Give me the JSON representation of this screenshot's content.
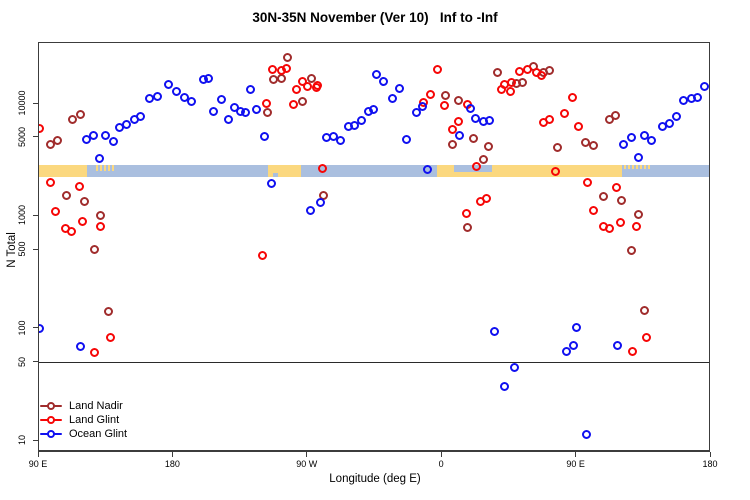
{
  "title": "30N-35N November (Ver 10)   Inf to -Inf",
  "axes": {
    "x_label": "Longitude (deg E)",
    "y_label": "N Total",
    "x_ticks": [
      {
        "label": "90 E",
        "deg": 0
      },
      {
        "label": "180",
        "deg": 90
      },
      {
        "label": "90 W",
        "deg": 180
      },
      {
        "label": "0",
        "deg": 270
      },
      {
        "label": "90 E",
        "deg": 360
      },
      {
        "label": "180",
        "deg": 450
      }
    ],
    "y_ticks": [
      {
        "label": "10",
        "value": 10
      },
      {
        "label": "50",
        "value": 50
      },
      {
        "label": "100",
        "value": 100
      },
      {
        "label": "500",
        "value": 500
      },
      {
        "label": "1000",
        "value": 1000
      },
      {
        "label": "5000",
        "value": 5000
      },
      {
        "label": "10000",
        "value": 10000
      }
    ],
    "reference_line_value": 50
  },
  "colors": {
    "land_nadir": "#a02c2c",
    "land_glint": "#f60606",
    "ocean_glint": "#1010f0",
    "strip_land": "#fbd87f",
    "strip_ocean": "#aabfdf"
  },
  "legend": [
    {
      "label": "Land Nadir",
      "color_key": "land_nadir"
    },
    {
      "label": "Land Glint",
      "color_key": "land_glint"
    },
    {
      "label": "Ocean Glint",
      "color_key": "ocean_glint"
    }
  ],
  "chart_data": {
    "type": "scatter",
    "x_axis": {
      "unit": "degrees east of 90E, wrapping around globe",
      "range": [
        0,
        450
      ]
    },
    "y_axis": {
      "unit": "N Total (log scale)",
      "range": [
        10,
        40000
      ]
    },
    "map_strip": {
      "description": "land/ocean band for 30N-35N latitude",
      "top_value": 2800,
      "bottom_value": 2200,
      "segments": [
        {
          "kind": "land",
          "from": 0,
          "to": 32.8
        },
        {
          "kind": "land",
          "from": 38.8,
          "to": 51.5,
          "v_from": 0,
          "v_to": 0.5,
          "speckle": true
        },
        {
          "kind": "land",
          "from": 154.0,
          "to": 176.1
        },
        {
          "kind": "ocean",
          "from": 157.4,
          "to": 160.7,
          "v_from": 0.7,
          "v_to": 1.0
        },
        {
          "kind": "land",
          "from": 267.2,
          "to": 391.1
        },
        {
          "kind": "ocean",
          "from": 278.6,
          "to": 304.0,
          "v_from": 0,
          "v_to": 0.55
        },
        {
          "kind": "land",
          "from": 392.4,
          "to": 409.8,
          "v_from": 0,
          "v_to": 0.35,
          "speckle": true
        }
      ]
    },
    "series": [
      {
        "name": "Land Nadir",
        "color_key": "land_nadir",
        "points": [
          [
            23.4,
            7070
          ],
          [
            28.8,
            7830
          ],
          [
            8.7,
            4240
          ],
          [
            13.4,
            4590
          ],
          [
            19.4,
            1490
          ],
          [
            31.5,
            1320
          ],
          [
            42.2,
            990
          ],
          [
            38.2,
            490
          ],
          [
            167.4,
            25200
          ],
          [
            158.1,
            16100
          ],
          [
            163.4,
            16400
          ],
          [
            183.5,
            16400
          ],
          [
            177.5,
            10200
          ],
          [
            153.8,
            8200
          ],
          [
            191.5,
            1490
          ],
          [
            273.2,
            11600
          ],
          [
            281.9,
            10400
          ],
          [
            292.0,
            4790
          ],
          [
            277.9,
            4240
          ],
          [
            302.0,
            4060
          ],
          [
            298.7,
            3110
          ],
          [
            287.9,
            770
          ],
          [
            308.1,
            18500
          ],
          [
            332.2,
            20900
          ],
          [
            320.8,
            14800
          ],
          [
            324.8,
            15100
          ],
          [
            338.9,
            18500
          ],
          [
            342.9,
            19300
          ],
          [
            367.0,
            4410
          ],
          [
            372.3,
            4150
          ],
          [
            348.2,
            3980
          ],
          [
            383.1,
            7070
          ],
          [
            387.1,
            7760
          ],
          [
            379.0,
            1460
          ],
          [
            391.1,
            1340
          ],
          [
            402.5,
            1010
          ],
          [
            397.8,
            480
          ],
          [
            47.5,
            138
          ],
          [
            406.5,
            141
          ]
        ]
      },
      {
        "name": "Land Glint",
        "color_key": "land_glint",
        "points": [
          [
            1.3,
            5880
          ],
          [
            8.7,
            1940
          ],
          [
            28.1,
            1790
          ],
          [
            12.1,
            1070
          ],
          [
            30.1,
            870
          ],
          [
            18.7,
            760
          ],
          [
            22.8,
            710
          ],
          [
            42.2,
            790
          ],
          [
            48.9,
            81
          ],
          [
            38.2,
            60
          ],
          [
            157.4,
            19700
          ],
          [
            163.4,
            19300
          ],
          [
            166.7,
            20200
          ],
          [
            173.4,
            13100
          ],
          [
            177.5,
            15400
          ],
          [
            180.8,
            13900
          ],
          [
            186.8,
            13600
          ],
          [
            187.5,
            14200
          ],
          [
            153.4,
            9820
          ],
          [
            171.4,
            9620
          ],
          [
            190.8,
            2590
          ],
          [
            150.7,
            440
          ],
          [
            267.9,
            19700
          ],
          [
            263.2,
            11800
          ],
          [
            258.5,
            10000
          ],
          [
            272.6,
            9420
          ],
          [
            288.0,
            9620
          ],
          [
            281.9,
            6790
          ],
          [
            277.9,
            5760
          ],
          [
            294.0,
            2700
          ],
          [
            296.6,
            1320
          ],
          [
            300.7,
            1400
          ],
          [
            287.3,
            1030
          ],
          [
            322.8,
            18900
          ],
          [
            328.1,
            19700
          ],
          [
            334.2,
            18500
          ],
          [
            337.5,
            17400
          ],
          [
            312.8,
            14500
          ],
          [
            317.4,
            15100
          ],
          [
            310.7,
            13100
          ],
          [
            316.8,
            12600
          ],
          [
            358.3,
            11100
          ],
          [
            352.9,
            8000
          ],
          [
            342.9,
            7070
          ],
          [
            338.9,
            6650
          ],
          [
            362.3,
            6120
          ],
          [
            346.9,
            2430
          ],
          [
            368.3,
            1940
          ],
          [
            387.7,
            1750
          ],
          [
            372.3,
            1090
          ],
          [
            379.0,
            790
          ],
          [
            383.1,
            760
          ],
          [
            390.4,
            860
          ],
          [
            401.1,
            790
          ],
          [
            398.4,
            61
          ],
          [
            407.8,
            81
          ]
        ]
      },
      {
        "name": "Ocean Glint",
        "color_key": "ocean_glint",
        "points": [
          [
            75.0,
            10900
          ],
          [
            80.4,
            11300
          ],
          [
            87.7,
            14500
          ],
          [
            93.1,
            12600
          ],
          [
            98.4,
            11100
          ],
          [
            103.1,
            10200
          ],
          [
            111.2,
            16100
          ],
          [
            114.5,
            16400
          ],
          [
            32.8,
            4690
          ],
          [
            37.5,
            5090
          ],
          [
            45.5,
            5090
          ],
          [
            50.9,
            4500
          ],
          [
            41.5,
            3180
          ],
          [
            54.9,
            6000
          ],
          [
            59.6,
            6380
          ],
          [
            65.0,
            7070
          ],
          [
            69.0,
            7520
          ],
          [
            142.6,
            13100
          ],
          [
            123.2,
            10600
          ],
          [
            117.9,
            8330
          ],
          [
            127.9,
            7070
          ],
          [
            131.9,
            9050
          ],
          [
            135.9,
            8330
          ],
          [
            139.3,
            8160
          ],
          [
            146.7,
            8680
          ],
          [
            152.0,
            4990
          ],
          [
            193.5,
            4890
          ],
          [
            198.2,
            4990
          ],
          [
            202.9,
            4590
          ],
          [
            208.3,
            6120
          ],
          [
            212.3,
            6250
          ],
          [
            217.0,
            6930
          ],
          [
            221.7,
            8330
          ],
          [
            156.7,
            1910
          ],
          [
            189.5,
            1290
          ],
          [
            182.8,
            1090
          ],
          [
            227.0,
            17800
          ],
          [
            231.7,
            15400
          ],
          [
            242.4,
            13300
          ],
          [
            237.7,
            10900
          ],
          [
            225.0,
            8680
          ],
          [
            253.8,
            8160
          ],
          [
            257.8,
            9250
          ],
          [
            290.0,
            8870
          ],
          [
            293.3,
            7230
          ],
          [
            298.7,
            6790
          ],
          [
            302.7,
            6930
          ],
          [
            282.6,
            5090
          ],
          [
            247.1,
            4690
          ],
          [
            261.2,
            2540
          ],
          [
            392.4,
            4240
          ],
          [
            397.8,
            4890
          ],
          [
            406.5,
            5090
          ],
          [
            411.2,
            4590
          ],
          [
            402.5,
            3240
          ],
          [
            418.5,
            6120
          ],
          [
            423.2,
            6520
          ],
          [
            427.9,
            7520
          ],
          [
            432.6,
            10400
          ],
          [
            437.9,
            10900
          ],
          [
            441.9,
            11100
          ],
          [
            446.6,
            13900
          ],
          [
            1.3,
            97
          ],
          [
            28.8,
            67
          ],
          [
            306.0,
            92
          ],
          [
            361.0,
            99
          ],
          [
            354.3,
            61
          ],
          [
            358.9,
            69
          ],
          [
            388.4,
            69
          ],
          [
            319.4,
            44
          ],
          [
            312.8,
            30
          ],
          [
            367.7,
            11
          ]
        ]
      }
    ]
  }
}
